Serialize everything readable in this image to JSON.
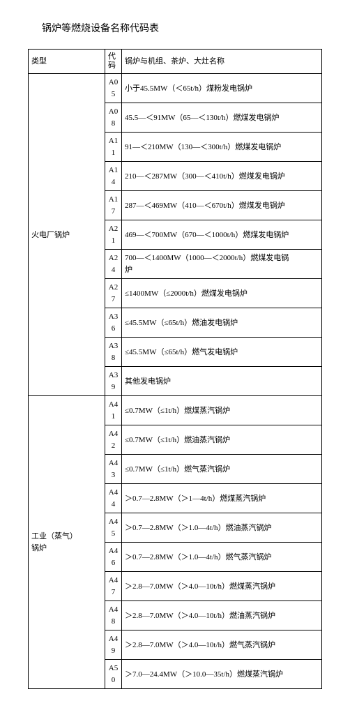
{
  "title": "锅炉等燃烧设备名称代码表",
  "headers": {
    "type": "类型",
    "code": "代\n码",
    "name": "锅炉与机组、茶炉、大灶名称"
  },
  "groups": [
    {
      "type": "火电厂锅炉",
      "rows": [
        {
          "code": "A05",
          "name": "小于45.5MW（＜65t/h）煤粉发电锅炉"
        },
        {
          "code": "A08",
          "name": "45.5—＜91MW（65—＜130t/h）燃煤发电锅炉"
        },
        {
          "code": "A11",
          "name": "91—＜210MW（130—＜300t/h）燃煤发电锅炉"
        },
        {
          "code": "A14",
          "name": "210—＜287MW（300—＜410t/h）燃煤发电锅炉"
        },
        {
          "code": "A17",
          "name": "287—＜469MW（410—＜670t/h）燃煤发电锅炉"
        },
        {
          "code": "A21",
          "name": "469—＜700MW（670—＜1000t/h）燃煤发电锅炉"
        },
        {
          "code": "A24",
          "name": "700—＜1400MW（1000—＜2000t/h）燃煤发电锅\n炉"
        },
        {
          "code": "A27",
          "name": "≤1400MW（≤2000t/h）燃煤发电锅炉"
        },
        {
          "code": "A36",
          "name": "≤45.5MW（≤65t/h）燃油发电锅炉"
        },
        {
          "code": "A38",
          "name": "≤45.5MW（≤65t/h）燃气发电锅炉"
        },
        {
          "code": "A39",
          "name": "其他发电锅炉"
        }
      ]
    },
    {
      "type": "工业（蒸气）\n锅炉",
      "rows": [
        {
          "code": "A41",
          "name": "≤0.7MW（≤1t/h）燃煤蒸汽锅炉"
        },
        {
          "code": "A42",
          "name": "≤0.7MW（≤1t/h）燃油蒸汽锅炉"
        },
        {
          "code": "A43",
          "name": "≤0.7MW（≤1t/h）燃气蒸汽锅炉"
        },
        {
          "code": "A44",
          "name": "＞0.7—2.8MW（＞1—4t/h）燃煤蒸汽锅炉"
        },
        {
          "code": "A45",
          "name": "＞0.7—2.8MW（＞1.0—4t/h）燃油蒸汽锅炉"
        },
        {
          "code": "A46",
          "name": "＞0.7—2.8MW（＞1.0—4t/h）燃气蒸汽锅炉"
        },
        {
          "code": "A47",
          "name": "＞2.8—7.0MW（＞4.0—10t/h）燃煤蒸汽锅炉"
        },
        {
          "code": "A48",
          "name": "＞2.8—7.0MW（＞4.0—10t/h）燃油蒸汽锅炉"
        },
        {
          "code": "A49",
          "name": "＞2.8—7.0MW（＞4.0—10t/h）燃气蒸汽锅炉"
        },
        {
          "code": "A50",
          "name": "＞7.0—24.4MW（＞10.0—35t/h）燃煤蒸汽锅炉"
        }
      ]
    }
  ]
}
